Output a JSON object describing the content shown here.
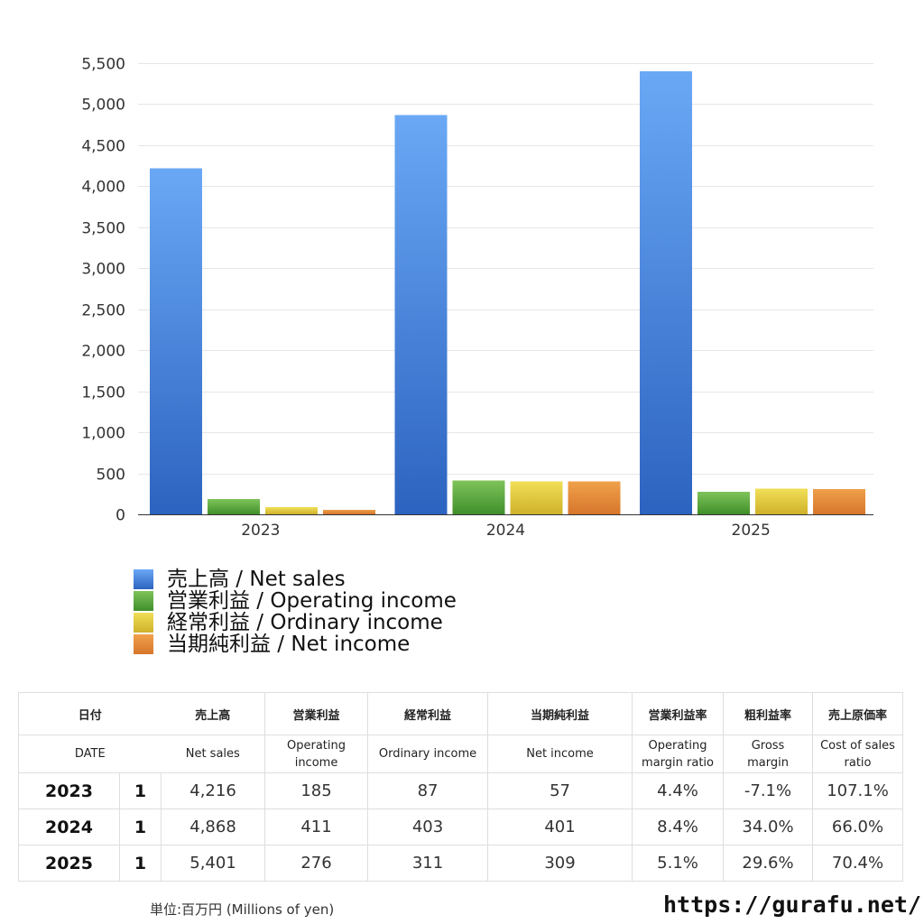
{
  "chart_data": {
    "type": "bar",
    "categories": [
      "2023",
      "2024",
      "2025"
    ],
    "series": [
      {
        "name": "売上高 / Net sales",
        "values": [
          4216,
          4868,
          5401
        ]
      },
      {
        "name": "営業利益 / Operating income",
        "values": [
          185,
          411,
          276
        ]
      },
      {
        "name": "経常利益 / Ordinary income",
        "values": [
          87,
          403,
          311
        ]
      },
      {
        "name": "当期純利益 / Net income",
        "values": [
          57,
          401,
          309
        ]
      }
    ],
    "ylim": [
      0,
      5500
    ],
    "yticks": [
      "0",
      "500",
      "1,000",
      "1,500",
      "2,000",
      "2,500",
      "3,000",
      "3,500",
      "4,000",
      "4,500",
      "5,000",
      "5,500"
    ],
    "grid": true,
    "legend": "bottom-left"
  },
  "colors": {
    "net_sales": [
      "#6aa8f5",
      "#2c63c0"
    ],
    "operating": [
      "#7fc35a",
      "#3f8f2a"
    ],
    "ordinary": [
      "#f1df57",
      "#cfb12b"
    ],
    "net_income": [
      "#f0a14a",
      "#d6762c"
    ]
  },
  "table": {
    "headers_ja": [
      "日付",
      "売上高",
      "営業利益",
      "経常利益",
      "当期純利益",
      "営業利益率",
      "粗利益率",
      "売上原価率"
    ],
    "headers_en": {
      "date": "DATE",
      "net_sales": "Net sales",
      "operating": [
        "Operating",
        "income"
      ],
      "ordinary": "Ordinary income",
      "net_income": "Net income",
      "op_margin": [
        "Operating",
        "margin ratio"
      ],
      "gross": [
        "Gross",
        "margin"
      ],
      "cost": [
        "Cost of sales",
        "ratio"
      ]
    },
    "rows": [
      {
        "year": "2023",
        "month": "1",
        "net_sales": "4,216",
        "operating": "185",
        "ordinary": "87",
        "net_income": "57",
        "op_margin": "4.4%",
        "gross": "-7.1%",
        "cost": "107.1%"
      },
      {
        "year": "2024",
        "month": "1",
        "net_sales": "4,868",
        "operating": "411",
        "ordinary": "403",
        "net_income": "401",
        "op_margin": "8.4%",
        "gross": "34.0%",
        "cost": "66.0%"
      },
      {
        "year": "2025",
        "month": "1",
        "net_sales": "5,401",
        "operating": "276",
        "ordinary": "311",
        "net_income": "309",
        "op_margin": "5.1%",
        "gross": "29.6%",
        "cost": "70.4%"
      }
    ]
  },
  "footnote": "単位:百万円 (Millions of yen)",
  "site": "https://gurafu.net/"
}
